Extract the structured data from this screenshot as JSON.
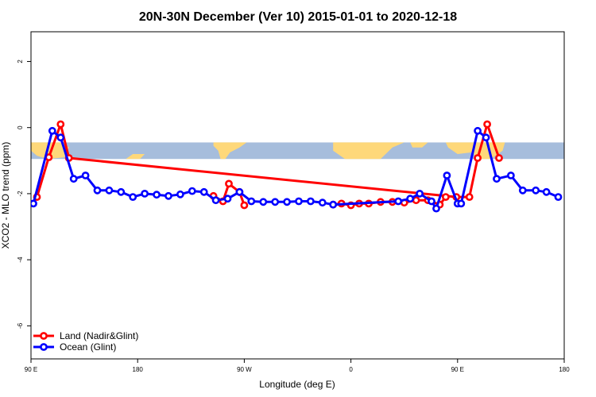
{
  "chart_data": {
    "type": "line",
    "title": "20N-30N December (Ver 10)   2015-01-01 to 2020-12-18",
    "xlabel": "Longitude (deg E)",
    "ylabel": "XCO2 - MLO trend (ppm)",
    "xlim": [
      90,
      540
    ],
    "ylim": [
      -7,
      2.9
    ],
    "xticks": [
      {
        "value": 90,
        "label": "90 E"
      },
      {
        "value": 180,
        "label": "180"
      },
      {
        "value": 270,
        "label": "90 W"
      },
      {
        "value": 360,
        "label": "0"
      },
      {
        "value": 450,
        "label": "90 E"
      },
      {
        "value": 540,
        "label": "180"
      }
    ],
    "yticks": [
      {
        "value": 2,
        "label": "2"
      },
      {
        "value": 0,
        "label": "0"
      },
      {
        "value": -2,
        "label": "-2"
      },
      {
        "value": -4,
        "label": "-4"
      },
      {
        "value": -6,
        "label": "-6"
      }
    ],
    "grid": false,
    "legend_position": "bottom-left",
    "map_band": {
      "y_top": -0.45,
      "y_bottom": -0.95,
      "ocean_color": "#a6bddc",
      "land_color": "#fed87a"
    },
    "series": [
      {
        "name": "Land (Nadir&Glint)",
        "color": "#ff0000",
        "x": [
          95,
          105,
          115,
          122,
          449,
          460,
          467,
          475,
          485
        ],
        "y": [
          -2.1,
          -0.9,
          0.1,
          -0.92,
          -2.1,
          -2.1,
          -0.92,
          0.1,
          -0.92
        ]
      },
      {
        "name": "Land (Nadir&Glint)",
        "color": "#ff0000",
        "x": [
          244,
          252,
          257,
          266,
          270
        ],
        "y": [
          -2.07,
          -2.23,
          -1.7,
          -1.95,
          -2.35
        ]
      },
      {
        "name": "Land (Nadir&Glint)",
        "color": "#ff0000",
        "x": [
          345,
          352,
          360,
          367,
          375,
          385,
          395,
          405,
          415,
          425,
          435,
          440
        ],
        "y": [
          -2.33,
          -2.3,
          -2.35,
          -2.3,
          -2.3,
          -2.25,
          -2.25,
          -2.27,
          -2.2,
          -2.2,
          -2.33,
          -2.1
        ]
      },
      {
        "name": "Ocean (Glint)",
        "color": "#0000ff",
        "x": [
          92,
          108,
          115,
          126,
          136,
          146,
          156,
          166,
          176,
          186,
          196,
          206,
          216,
          226,
          236,
          246,
          256,
          266,
          276,
          286,
          296,
          306,
          316,
          326,
          336,
          345,
          400,
          410,
          418,
          428,
          432,
          441,
          450,
          453,
          467,
          474,
          483,
          495,
          505,
          516,
          525,
          535
        ],
        "y": [
          -2.3,
          -0.1,
          -0.3,
          -1.55,
          -1.45,
          -1.9,
          -1.9,
          -1.95,
          -2.1,
          -2.0,
          -2.03,
          -2.07,
          -2.02,
          -1.92,
          -1.95,
          -2.2,
          -2.15,
          -1.95,
          -2.23,
          -2.25,
          -2.25,
          -2.25,
          -2.23,
          -2.23,
          -2.27,
          -2.33,
          -2.23,
          -2.15,
          -2.0,
          -2.23,
          -2.45,
          -1.45,
          -2.3,
          -2.3,
          -0.1,
          -0.3,
          -1.55,
          -1.45,
          -1.9,
          -1.9,
          -1.95,
          -2.1
        ]
      }
    ]
  }
}
